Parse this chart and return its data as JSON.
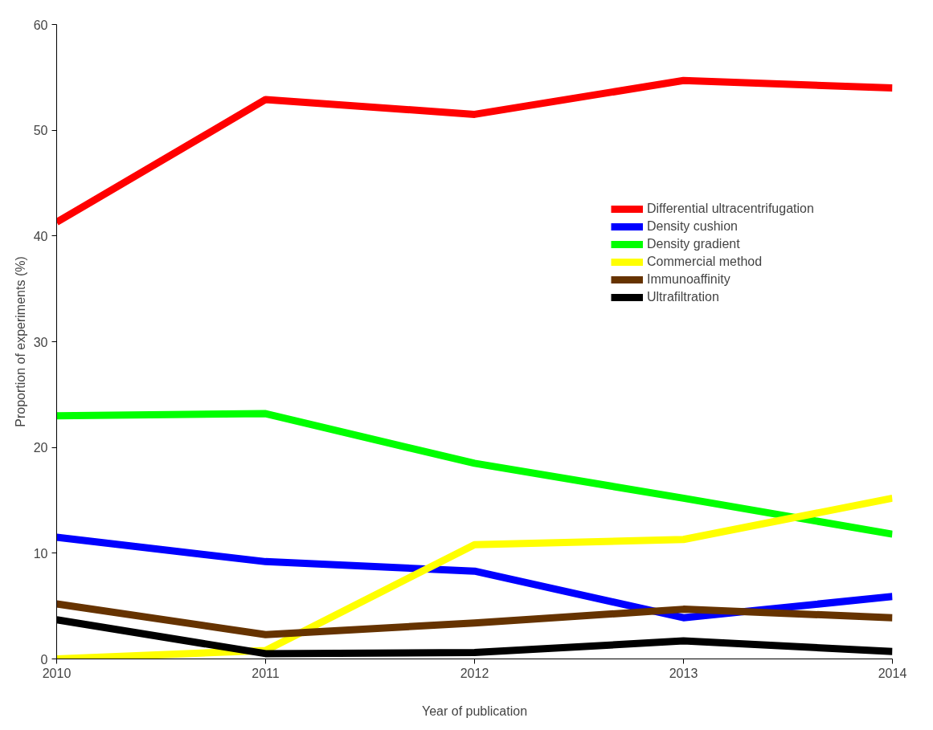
{
  "chart_data": {
    "type": "line",
    "xlabel": "Year of publication",
    "ylabel": "Proportion of experiments (%)",
    "x": [
      2010,
      2011,
      2012,
      2013,
      2014
    ],
    "xlim": [
      2010,
      2014
    ],
    "xticks": [
      2010,
      2011,
      2012,
      2013,
      2014
    ],
    "ylim": [
      0,
      60
    ],
    "yticks": [
      0,
      10,
      20,
      30,
      40,
      50,
      60
    ],
    "grid": false,
    "legend": "right",
    "line_style": "solid",
    "series": [
      {
        "name": "Differential ultracentrifugation",
        "color": "#ff0000",
        "values": [
          41.3,
          52.9,
          51.5,
          54.7,
          54.0
        ]
      },
      {
        "name": "Density cushion",
        "color": "#0000ff",
        "values": [
          11.5,
          9.2,
          8.3,
          3.9,
          5.9
        ]
      },
      {
        "name": "Density gradient",
        "color": "#00ff00",
        "values": [
          23.0,
          23.2,
          18.5,
          15.2,
          11.8
        ]
      },
      {
        "name": "Commercial method",
        "color": "#ffff00",
        "values": [
          0,
          0.8,
          10.8,
          11.3,
          15.2
        ]
      },
      {
        "name": "Immunoaffinity",
        "color": "#663300",
        "values": [
          5.2,
          2.3,
          3.4,
          4.7,
          3.9
        ]
      },
      {
        "name": "Ultrafiltration",
        "color": "#000000",
        "values": [
          3.7,
          0.5,
          0.6,
          1.7,
          0.7
        ]
      }
    ]
  }
}
